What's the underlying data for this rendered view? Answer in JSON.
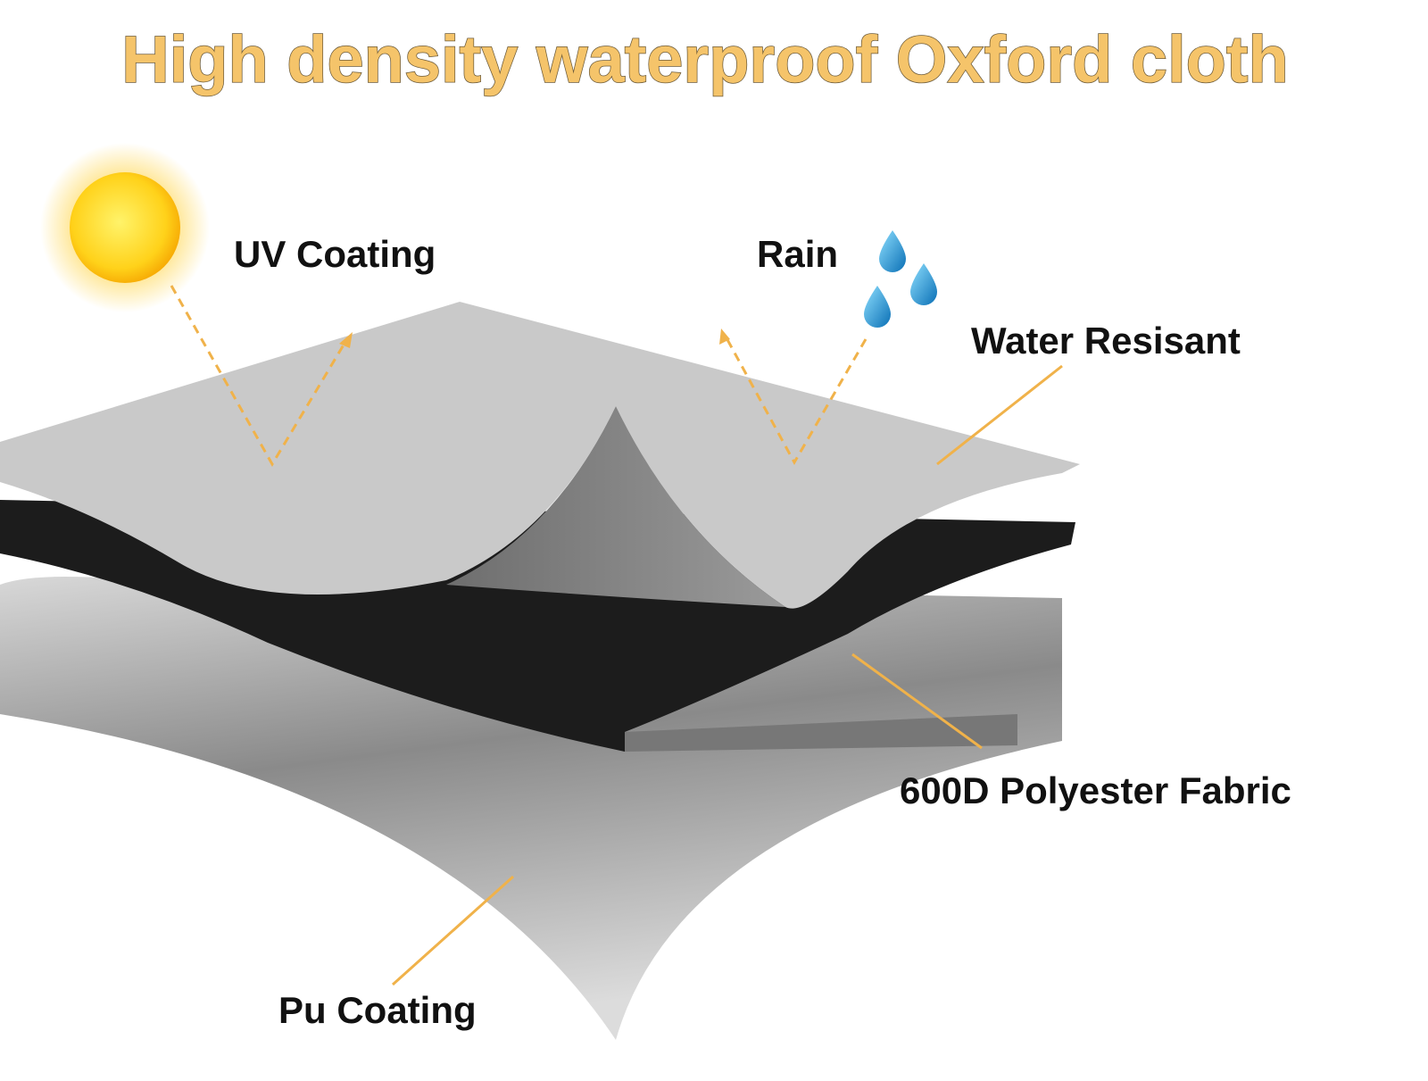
{
  "title": "High density waterproof Oxford cloth",
  "labels": {
    "uv": "UV Coating",
    "rain": "Rain",
    "water": "Water Resisant",
    "fabric": "600D Polyester Fabric",
    "pu": "Pu Coating"
  }
}
